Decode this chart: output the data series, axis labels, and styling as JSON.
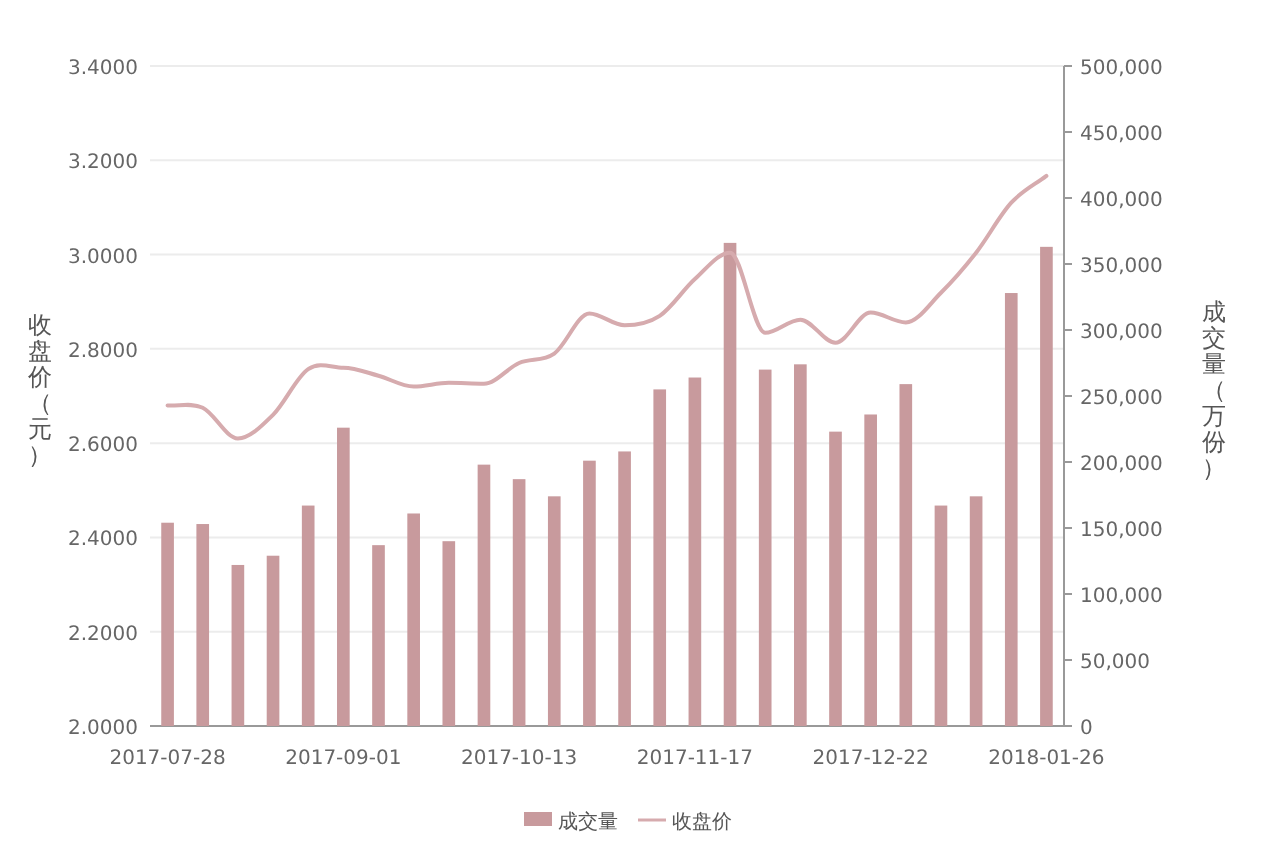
{
  "chart_data": {
    "type": "bar",
    "categories": [
      "2017-07-28",
      null,
      null,
      null,
      null,
      "2017-09-01",
      null,
      null,
      null,
      null,
      "2017-10-13",
      null,
      null,
      null,
      null,
      "2017-11-17",
      null,
      null,
      null,
      null,
      "2017-12-22",
      null,
      null,
      null,
      null,
      "2018-01-26"
    ],
    "series": [
      {
        "name": "成交量",
        "axis": "y2",
        "color": "#c89a9d",
        "values": [
          154000,
          153000,
          122000,
          129000,
          167000,
          226000,
          137000,
          161000,
          140000,
          198000,
          187000,
          174000,
          201000,
          208000,
          255000,
          264000,
          366000,
          270000,
          274000,
          223000,
          236000,
          259000,
          167000,
          174000,
          328000,
          363000
        ]
      },
      {
        "name": "收盘价",
        "type": "line",
        "axis": "y",
        "color": "#d6abae",
        "values": [
          2.68,
          2.675,
          2.61,
          2.66,
          2.757,
          2.76,
          2.743,
          2.72,
          2.728,
          2.726,
          2.77,
          2.79,
          2.875,
          2.85,
          2.87,
          2.948,
          3.004,
          2.834,
          2.862,
          2.813,
          2.877,
          2.856,
          2.919,
          3.004,
          3.11,
          3.167
        ]
      }
    ],
    "ylabel": "收盘价（元）",
    "y2label": "成交量（万份）",
    "ylim": [
      2,
      3.4
    ],
    "yticks": [
      {
        "value": 2,
        "label": "2.0000"
      },
      {
        "value": 2.2,
        "label": "2.2000"
      },
      {
        "value": 2.4,
        "label": "2.4000"
      },
      {
        "value": 2.6,
        "label": "2.6000"
      },
      {
        "value": 2.8,
        "label": "2.8000"
      },
      {
        "value": 3,
        "label": "3.0000"
      },
      {
        "value": 3.2,
        "label": "3.2000"
      },
      {
        "value": 3.4,
        "label": "3.4000"
      }
    ],
    "y2lim": [
      0,
      500000
    ],
    "y2ticks": [
      0,
      {
        "value": 50000,
        "label": "50,000"
      },
      {
        "value": 100000,
        "label": "100,000"
      },
      {
        "value": 150000,
        "label": "150,000"
      },
      {
        "value": 200000,
        "label": "200,000"
      },
      {
        "value": 250000,
        "label": "250,000"
      },
      {
        "value": 300000,
        "label": "300,000"
      },
      {
        "value": 350000,
        "label": "350,000"
      },
      {
        "value": 400000,
        "label": "400,000"
      },
      {
        "value": 450000,
        "label": "450,000"
      },
      {
        "value": 500000,
        "label": "500,000"
      }
    ],
    "grid": "y",
    "legend": "bottom"
  }
}
